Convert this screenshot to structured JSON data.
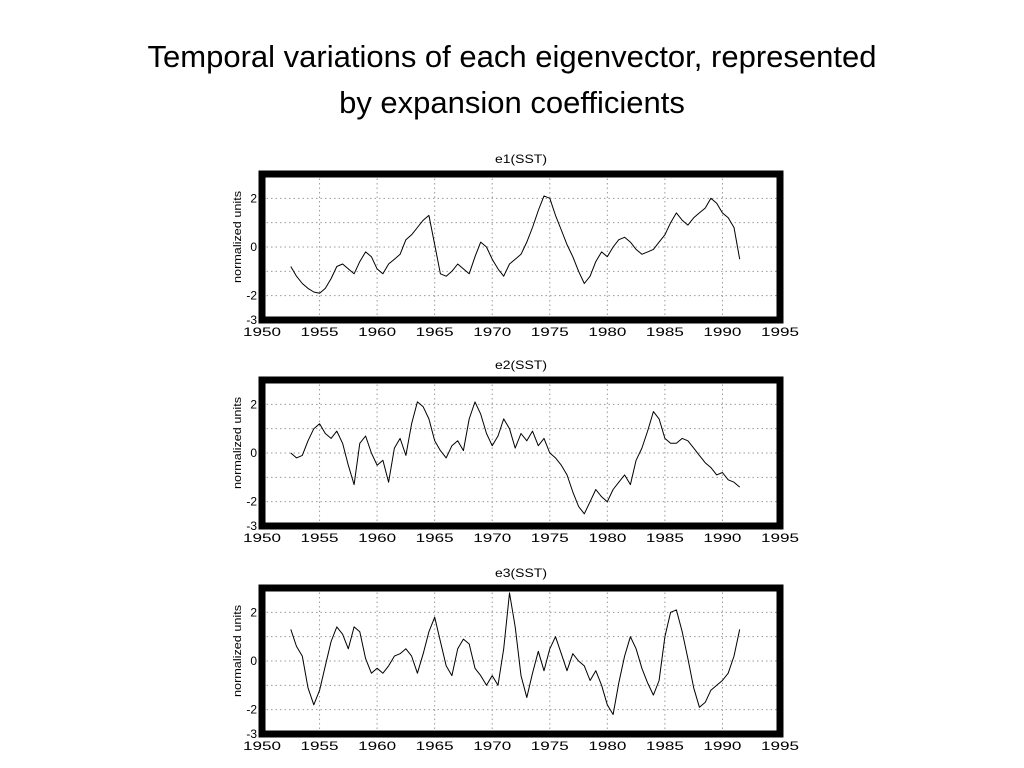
{
  "slide": {
    "title_line1": "Temporal variations of each eigenvector, represented",
    "title_line2": "by expansion coefficients"
  },
  "chart_data": [
    {
      "type": "line",
      "title": "e1(SST)",
      "ylabel": "normalized units",
      "xlim": [
        1950,
        1995
      ],
      "ylim": [
        -3,
        3
      ],
      "xticks": [
        1950,
        1955,
        1960,
        1965,
        1970,
        1975,
        1980,
        1985,
        1990,
        1995
      ],
      "yticks": [
        -3,
        -2,
        -1,
        0,
        1,
        2
      ],
      "ytick_labels": [
        "-3",
        "-2",
        "",
        "0",
        "",
        "2"
      ],
      "grid": true,
      "legend": "none",
      "series": [
        {
          "x": [
            1952.5,
            1953.0,
            1953.5,
            1954.0,
            1954.5,
            1955.0,
            1955.5,
            1956.0,
            1956.5,
            1957.0,
            1957.5,
            1958.0,
            1958.5,
            1959.0,
            1959.5,
            1960.0,
            1960.5,
            1961.0,
            1961.5,
            1962.0,
            1962.5,
            1963.0,
            1963.5,
            1964.0,
            1964.5,
            1965.0,
            1965.5,
            1966.0,
            1966.5,
            1967.0,
            1967.5,
            1968.0,
            1968.5,
            1969.0,
            1969.5,
            1970.0,
            1970.5,
            1971.0,
            1971.5,
            1972.0,
            1972.5,
            1973.0,
            1973.5,
            1974.0,
            1974.5,
            1975.0,
            1975.5,
            1976.0,
            1976.5,
            1977.0,
            1977.5,
            1978.0,
            1978.5,
            1979.0,
            1979.5,
            1980.0,
            1980.5,
            1981.0,
            1981.5,
            1982.0,
            1982.5,
            1983.0,
            1983.5,
            1984.0,
            1984.5,
            1985.0,
            1985.5,
            1986.0,
            1986.5,
            1987.0,
            1987.5,
            1988.0,
            1988.5,
            1989.0,
            1989.5,
            1990.0,
            1990.5,
            1991.0,
            1991.5
          ],
          "y": [
            -0.8,
            -1.2,
            -1.5,
            -1.7,
            -1.85,
            -1.9,
            -1.7,
            -1.3,
            -0.8,
            -0.7,
            -0.9,
            -1.1,
            -0.6,
            -0.2,
            -0.4,
            -0.9,
            -1.1,
            -0.7,
            -0.5,
            -0.3,
            0.3,
            0.5,
            0.8,
            1.1,
            1.3,
            0.1,
            -1.1,
            -1.2,
            -1.0,
            -0.7,
            -0.9,
            -1.1,
            -0.4,
            0.2,
            0.0,
            -0.5,
            -0.9,
            -1.2,
            -0.7,
            -0.5,
            -0.3,
            0.2,
            0.8,
            1.5,
            2.1,
            2.0,
            1.3,
            0.7,
            0.1,
            -0.4,
            -1.0,
            -1.5,
            -1.2,
            -0.6,
            -0.2,
            -0.4,
            0.0,
            0.3,
            0.4,
            0.2,
            -0.1,
            -0.3,
            -0.2,
            -0.1,
            0.2,
            0.5,
            1.0,
            1.4,
            1.1,
            0.9,
            1.2,
            1.4,
            1.6,
            2.0,
            1.8,
            1.4,
            1.2,
            0.8,
            -0.5
          ]
        }
      ]
    },
    {
      "type": "line",
      "title": "e2(SST)",
      "ylabel": "normalized units",
      "xlim": [
        1950,
        1995
      ],
      "ylim": [
        -3,
        3
      ],
      "xticks": [
        1950,
        1955,
        1960,
        1965,
        1970,
        1975,
        1980,
        1985,
        1990,
        1995
      ],
      "yticks": [
        -3,
        -2,
        -1,
        0,
        1,
        2
      ],
      "ytick_labels": [
        "-3",
        "-2",
        "",
        "0",
        "",
        "2"
      ],
      "grid": true,
      "legend": "none",
      "series": [
        {
          "x": [
            1952.5,
            1953.0,
            1953.5,
            1954.0,
            1954.5,
            1955.0,
            1955.5,
            1956.0,
            1956.5,
            1957.0,
            1957.5,
            1958.0,
            1958.5,
            1959.0,
            1959.5,
            1960.0,
            1960.5,
            1961.0,
            1961.5,
            1962.0,
            1962.5,
            1963.0,
            1963.5,
            1964.0,
            1964.5,
            1965.0,
            1965.5,
            1966.0,
            1966.5,
            1967.0,
            1967.5,
            1968.0,
            1968.5,
            1969.0,
            1969.5,
            1970.0,
            1970.5,
            1971.0,
            1971.5,
            1972.0,
            1972.5,
            1973.0,
            1973.5,
            1974.0,
            1974.5,
            1975.0,
            1975.5,
            1976.0,
            1976.5,
            1977.0,
            1977.5,
            1978.0,
            1978.5,
            1979.0,
            1979.5,
            1980.0,
            1980.5,
            1981.0,
            1981.5,
            1982.0,
            1982.5,
            1983.0,
            1983.5,
            1984.0,
            1984.5,
            1985.0,
            1985.5,
            1986.0,
            1986.5,
            1987.0,
            1987.5,
            1988.0,
            1988.5,
            1989.0,
            1989.5,
            1990.0,
            1990.5,
            1991.0,
            1991.5
          ],
          "y": [
            0.0,
            -0.2,
            -0.1,
            0.5,
            1.0,
            1.2,
            0.8,
            0.6,
            0.9,
            0.4,
            -0.5,
            -1.3,
            0.4,
            0.7,
            0.0,
            -0.5,
            -0.3,
            -1.2,
            0.2,
            0.6,
            -0.1,
            1.2,
            2.1,
            1.9,
            1.4,
            0.5,
            0.1,
            -0.2,
            0.3,
            0.5,
            0.1,
            1.4,
            2.1,
            1.6,
            0.8,
            0.3,
            0.7,
            1.4,
            1.0,
            0.2,
            0.8,
            0.5,
            0.9,
            0.3,
            0.6,
            0.0,
            -0.2,
            -0.5,
            -0.9,
            -1.6,
            -2.2,
            -2.5,
            -2.0,
            -1.5,
            -1.8,
            -2.0,
            -1.5,
            -1.2,
            -0.9,
            -1.3,
            -0.3,
            0.2,
            0.9,
            1.7,
            1.4,
            0.6,
            0.4,
            0.4,
            0.6,
            0.5,
            0.2,
            -0.1,
            -0.4,
            -0.6,
            -0.9,
            -0.8,
            -1.1,
            -1.2,
            -1.4
          ]
        }
      ]
    },
    {
      "type": "line",
      "title": "e3(SST)",
      "ylabel": "normalized units",
      "xlim": [
        1950,
        1995
      ],
      "ylim": [
        -3,
        3
      ],
      "xticks": [
        1950,
        1955,
        1960,
        1965,
        1970,
        1975,
        1980,
        1985,
        1990,
        1995
      ],
      "yticks": [
        -3,
        -2,
        -1,
        0,
        1,
        2
      ],
      "ytick_labels": [
        "-3",
        "-2",
        "",
        "0",
        "",
        "2"
      ],
      "grid": true,
      "legend": "none",
      "series": [
        {
          "x": [
            1952.5,
            1953.0,
            1953.5,
            1954.0,
            1954.5,
            1955.0,
            1955.5,
            1956.0,
            1956.5,
            1957.0,
            1957.5,
            1958.0,
            1958.5,
            1959.0,
            1959.5,
            1960.0,
            1960.5,
            1961.0,
            1961.5,
            1962.0,
            1962.5,
            1963.0,
            1963.5,
            1964.0,
            1964.5,
            1965.0,
            1965.5,
            1966.0,
            1966.5,
            1967.0,
            1967.5,
            1968.0,
            1968.5,
            1969.0,
            1969.5,
            1970.0,
            1970.5,
            1971.0,
            1971.5,
            1972.0,
            1972.5,
            1973.0,
            1973.5,
            1974.0,
            1974.5,
            1975.0,
            1975.5,
            1976.0,
            1976.5,
            1977.0,
            1977.5,
            1978.0,
            1978.5,
            1979.0,
            1979.5,
            1980.0,
            1980.5,
            1981.0,
            1981.5,
            1982.0,
            1982.5,
            1983.0,
            1983.5,
            1984.0,
            1984.5,
            1985.0,
            1985.5,
            1986.0,
            1986.5,
            1987.0,
            1987.5,
            1988.0,
            1988.5,
            1989.0,
            1989.5,
            1990.0,
            1990.5,
            1991.0,
            1991.5
          ],
          "y": [
            1.3,
            0.6,
            0.2,
            -1.1,
            -1.8,
            -1.2,
            -0.2,
            0.8,
            1.4,
            1.1,
            0.5,
            1.4,
            1.2,
            0.1,
            -0.5,
            -0.3,
            -0.5,
            -0.2,
            0.2,
            0.3,
            0.5,
            0.2,
            -0.5,
            0.3,
            1.2,
            1.8,
            0.8,
            -0.2,
            -0.6,
            0.5,
            0.9,
            0.7,
            -0.3,
            -0.6,
            -1.0,
            -0.6,
            -1.0,
            0.5,
            2.8,
            1.4,
            -0.6,
            -1.5,
            -0.5,
            0.4,
            -0.4,
            0.5,
            1.0,
            0.3,
            -0.4,
            0.3,
            0.0,
            -0.2,
            -0.8,
            -0.4,
            -1.0,
            -1.8,
            -2.2,
            -0.9,
            0.2,
            1.0,
            0.5,
            -0.3,
            -0.9,
            -1.4,
            -0.8,
            1.0,
            2.0,
            2.1,
            1.2,
            0.1,
            -1.1,
            -1.9,
            -1.7,
            -1.2,
            -1.0,
            -0.8,
            -0.5,
            0.2,
            1.3
          ]
        }
      ]
    }
  ]
}
